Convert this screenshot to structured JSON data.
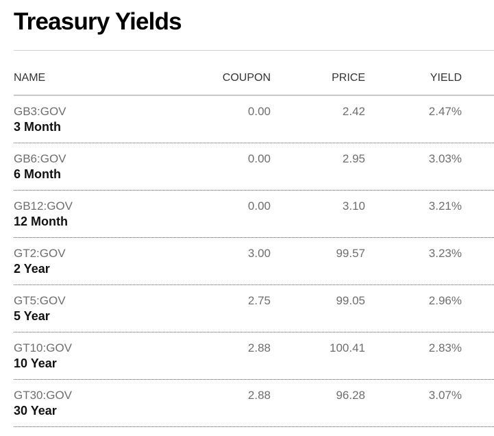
{
  "page": {
    "title": "Treasury Yields"
  },
  "table": {
    "headers": {
      "name": "NAME",
      "coupon": "COUPON",
      "price": "PRICE",
      "yield": "YIELD"
    },
    "rows": [
      {
        "ticker": "GB3:GOV",
        "name": "3 Month",
        "coupon": "0.00",
        "price": "2.42",
        "yield": "2.47%"
      },
      {
        "ticker": "GB6:GOV",
        "name": "6 Month",
        "coupon": "0.00",
        "price": "2.95",
        "yield": "3.03%"
      },
      {
        "ticker": "GB12:GOV",
        "name": "12 Month",
        "coupon": "0.00",
        "price": "3.10",
        "yield": "3.21%"
      },
      {
        "ticker": "GT2:GOV",
        "name": "2 Year",
        "coupon": "3.00",
        "price": "99.57",
        "yield": "3.23%"
      },
      {
        "ticker": "GT5:GOV",
        "name": "5 Year",
        "coupon": "2.75",
        "price": "99.05",
        "yield": "2.96%"
      },
      {
        "ticker": "GT10:GOV",
        "name": "10 Year",
        "coupon": "2.88",
        "price": "100.41",
        "yield": "2.83%"
      },
      {
        "ticker": "GT30:GOV",
        "name": "30 Year",
        "coupon": "2.88",
        "price": "96.28",
        "yield": "3.07%"
      }
    ]
  }
}
